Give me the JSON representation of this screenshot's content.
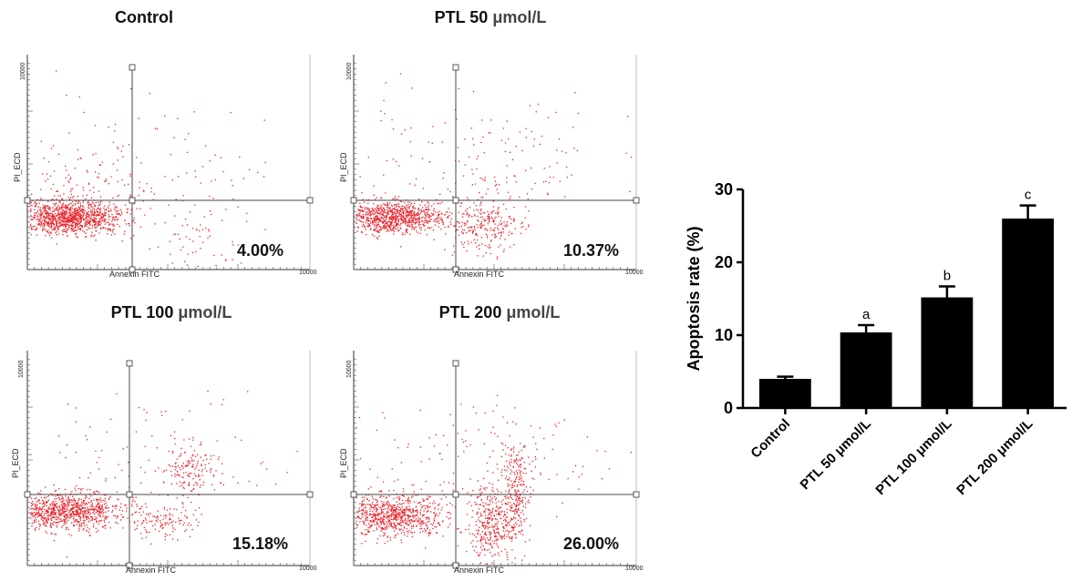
{
  "chart_data": [
    {
      "type": "scatter",
      "title": "Control",
      "title_unit": "",
      "xlabel": "Annexin FITC",
      "ylabel": "PI_ECD",
      "x_max_tick": "10000",
      "y_max_tick": "10000",
      "percentage": "4.00%",
      "color": "#e8232a"
    },
    {
      "type": "scatter",
      "title": "PTL 50",
      "title_unit": "μmol/L",
      "xlabel": "Annexin FITC",
      "ylabel": "PI_ECD",
      "x_max_tick": "10000",
      "y_max_tick": "10000",
      "percentage": "10.37%",
      "color": "#e8232a"
    },
    {
      "type": "scatter",
      "title": "PTL 100",
      "title_unit": "μmol/L",
      "xlabel": "Annexin FITC",
      "ylabel": "PI_ECD",
      "x_max_tick": "10000",
      "y_max_tick": "10000",
      "percentage": "15.18%",
      "color": "#e8232a"
    },
    {
      "type": "scatter",
      "title": "PTL 200",
      "title_unit": "μmol/L",
      "xlabel": "Annexin FITC",
      "ylabel": "PI_ECD",
      "x_max_tick": "10000",
      "y_max_tick": "10000",
      "percentage": "26.00%",
      "color": "#e8232a"
    },
    {
      "type": "bar",
      "title": "",
      "xlabel": "",
      "ylabel": "Apoptosis rate (%)",
      "categories": [
        "Control",
        "PTL 50 μmol/L",
        "PTL 100 μmol/L",
        "PTL 200 μmol/L"
      ],
      "values": [
        4.0,
        10.37,
        15.18,
        26.0
      ],
      "errors": [
        0.3,
        1.0,
        1.5,
        1.8
      ],
      "significance": [
        "",
        "a",
        "b",
        "c"
      ],
      "ylim": [
        0,
        30
      ],
      "yticks": [
        0,
        10,
        20,
        30
      ],
      "color": "#000000"
    }
  ]
}
